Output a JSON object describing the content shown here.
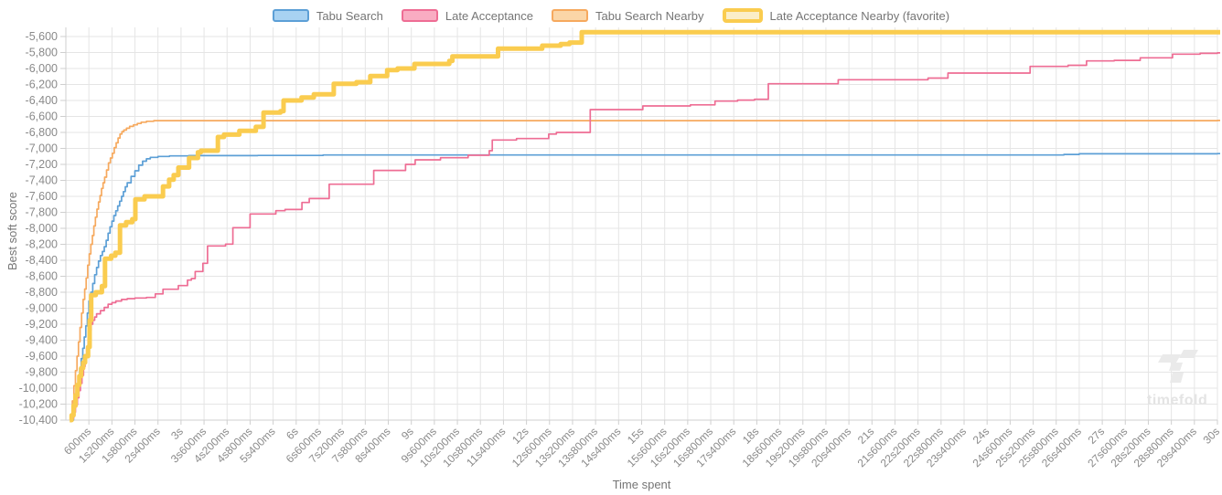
{
  "watermark": {
    "text": "timefold"
  },
  "chart_data": {
    "type": "line",
    "interpolation": "step-after",
    "title": "",
    "grid": true,
    "legend_position": "top",
    "x_axis": {
      "title": "Time spent",
      "range_ms": [
        0,
        30000
      ],
      "tick_values_ms": [
        600,
        1200,
        1800,
        2400,
        3000,
        3600,
        4200,
        4800,
        5400,
        6000,
        6600,
        7200,
        7800,
        8400,
        9000,
        9600,
        10200,
        10800,
        11400,
        12000,
        12600,
        13200,
        13800,
        14400,
        15000,
        15600,
        16200,
        16800,
        17400,
        18000,
        18600,
        19200,
        19800,
        20400,
        21000,
        21600,
        22200,
        22800,
        23400,
        24000,
        24600,
        25200,
        25800,
        26400,
        27000,
        27600,
        28200,
        28800,
        29400,
        30000
      ],
      "tick_labels": [
        "600ms",
        "1s200ms",
        "1s800ms",
        "2s400ms",
        "3s",
        "3s600ms",
        "4s200ms",
        "4s800ms",
        "5s400ms",
        "6s",
        "6s600ms",
        "7s200ms",
        "7s800ms",
        "8s400ms",
        "9s",
        "9s600ms",
        "10s200ms",
        "10s800ms",
        "11s400ms",
        "12s",
        "12s600ms",
        "13s200ms",
        "13s800ms",
        "14s400ms",
        "15s",
        "15s600ms",
        "16s200ms",
        "16s800ms",
        "17s400ms",
        "18s",
        "18s600ms",
        "19s200ms",
        "19s800ms",
        "20s400ms",
        "21s",
        "21s600ms",
        "22s200ms",
        "22s800ms",
        "23s400ms",
        "24s",
        "24s600ms",
        "25s200ms",
        "25s800ms",
        "26s400ms",
        "27s",
        "27s600ms",
        "28s200ms",
        "28s800ms",
        "29s400ms",
        "30s"
      ]
    },
    "y_axis": {
      "title": "Best soft score",
      "range": [
        -10400,
        -5600
      ],
      "tick_values": [
        -5600,
        -5800,
        -6000,
        -6200,
        -6400,
        -6600,
        -6800,
        -7000,
        -7200,
        -7400,
        -7600,
        -7800,
        -8000,
        -8200,
        -8400,
        -8600,
        -8800,
        -9000,
        -9200,
        -9400,
        -9600,
        -9800,
        -10000,
        -10200,
        -10400
      ],
      "tick_labels": [
        "-5,600",
        "-5,800",
        "-6,000",
        "-6,200",
        "-6,400",
        "-6,600",
        "-6,800",
        "-7,000",
        "-7,200",
        "-7,400",
        "-7,600",
        "-7,800",
        "-8,000",
        "-8,200",
        "-8,400",
        "-8,600",
        "-8,800",
        "-9,000",
        "-9,200",
        "-9,400",
        "-9,600",
        "-9,800",
        "-10,000",
        "-10,200",
        "-10,400"
      ]
    },
    "colors": {
      "grid": "#e5e5e5",
      "axis": "#cfcfcf",
      "tick_text": "#8a8a8a"
    },
    "series": [
      {
        "name": "Tabu Search",
        "color": "#5c9fd6",
        "legend_fill": "#a8d2f2",
        "line_width": 1.7,
        "favorite": false,
        "points": [
          [
            170,
            -10400
          ],
          [
            200,
            -10250
          ],
          [
            240,
            -10120
          ],
          [
            280,
            -9990
          ],
          [
            320,
            -9870
          ],
          [
            360,
            -9750
          ],
          [
            400,
            -9630
          ],
          [
            440,
            -9500
          ],
          [
            480,
            -9360
          ],
          [
            520,
            -9220
          ],
          [
            560,
            -9060
          ],
          [
            600,
            -8910
          ],
          [
            650,
            -8800
          ],
          [
            700,
            -8690
          ],
          [
            750,
            -8580
          ],
          [
            800,
            -8490
          ],
          [
            850,
            -8410
          ],
          [
            900,
            -8340
          ],
          [
            950,
            -8290
          ],
          [
            1000,
            -8230
          ],
          [
            1050,
            -8150
          ],
          [
            1100,
            -8060
          ],
          [
            1150,
            -7980
          ],
          [
            1200,
            -7910
          ],
          [
            1250,
            -7840
          ],
          [
            1300,
            -7780
          ],
          [
            1350,
            -7720
          ],
          [
            1400,
            -7660
          ],
          [
            1450,
            -7600
          ],
          [
            1500,
            -7540
          ],
          [
            1550,
            -7480
          ],
          [
            1600,
            -7430
          ],
          [
            1700,
            -7350
          ],
          [
            1800,
            -7280
          ],
          [
            1900,
            -7210
          ],
          [
            2000,
            -7160
          ],
          [
            2100,
            -7130
          ],
          [
            2200,
            -7112
          ],
          [
            2400,
            -7100
          ],
          [
            2700,
            -7094
          ],
          [
            3200,
            -7090
          ],
          [
            5000,
            -7088
          ],
          [
            6700,
            -7082
          ],
          [
            26000,
            -7075
          ],
          [
            26400,
            -7068
          ],
          [
            30000,
            -7065
          ]
        ]
      },
      {
        "name": "Late Acceptance",
        "color": "#ee6d94",
        "legend_fill": "#f9acc2",
        "line_width": 1.7,
        "favorite": false,
        "points": [
          [
            150,
            -10380
          ],
          [
            200,
            -10300
          ],
          [
            250,
            -10210
          ],
          [
            300,
            -10120
          ],
          [
            340,
            -10030
          ],
          [
            380,
            -9940
          ],
          [
            420,
            -9840
          ],
          [
            460,
            -9730
          ],
          [
            500,
            -9620
          ],
          [
            540,
            -9500
          ],
          [
            580,
            -9380
          ],
          [
            620,
            -9280
          ],
          [
            660,
            -9200
          ],
          [
            700,
            -9150
          ],
          [
            750,
            -9110
          ],
          [
            800,
            -9070
          ],
          [
            900,
            -9030
          ],
          [
            1000,
            -8990
          ],
          [
            1100,
            -8950
          ],
          [
            1200,
            -8930
          ],
          [
            1300,
            -8910
          ],
          [
            1450,
            -8890
          ],
          [
            1600,
            -8880
          ],
          [
            1800,
            -8872
          ],
          [
            2100,
            -8865
          ],
          [
            2330,
            -8820
          ],
          [
            2530,
            -8762
          ],
          [
            2930,
            -8717
          ],
          [
            3170,
            -8648
          ],
          [
            3270,
            -8629
          ],
          [
            3370,
            -8541
          ],
          [
            3570,
            -8438
          ],
          [
            3690,
            -8221
          ],
          [
            4160,
            -8198
          ],
          [
            4350,
            -7992
          ],
          [
            4800,
            -7821
          ],
          [
            5470,
            -7779
          ],
          [
            5710,
            -7765
          ],
          [
            6150,
            -7677
          ],
          [
            6340,
            -7627
          ],
          [
            6860,
            -7448
          ],
          [
            8020,
            -7276
          ],
          [
            8850,
            -7200
          ],
          [
            9100,
            -7143
          ],
          [
            9760,
            -7117
          ],
          [
            10480,
            -7086
          ],
          [
            11030,
            -7029
          ],
          [
            11110,
            -6895
          ],
          [
            11740,
            -6877
          ],
          [
            12580,
            -6820
          ],
          [
            12780,
            -6800
          ],
          [
            13660,
            -6514
          ],
          [
            15030,
            -6469
          ],
          [
            16270,
            -6455
          ],
          [
            16910,
            -6408
          ],
          [
            17500,
            -6395
          ],
          [
            17940,
            -6385
          ],
          [
            18300,
            -6191
          ],
          [
            20120,
            -6141
          ],
          [
            22460,
            -6120
          ],
          [
            22980,
            -6057
          ],
          [
            25120,
            -5974
          ],
          [
            26110,
            -5960
          ],
          [
            26590,
            -5905
          ],
          [
            27310,
            -5898
          ],
          [
            27990,
            -5866
          ],
          [
            28830,
            -5821
          ],
          [
            29550,
            -5810
          ],
          [
            30000,
            -5805
          ]
        ]
      },
      {
        "name": "Tabu Search Nearby",
        "color": "#f6a95e",
        "legend_fill": "#fbd6a7",
        "line_width": 1.7,
        "favorite": false,
        "points": [
          [
            130,
            -10350
          ],
          [
            170,
            -10160
          ],
          [
            210,
            -9970
          ],
          [
            250,
            -9780
          ],
          [
            290,
            -9600
          ],
          [
            330,
            -9420
          ],
          [
            370,
            -9240
          ],
          [
            410,
            -9060
          ],
          [
            450,
            -8890
          ],
          [
            490,
            -8760
          ],
          [
            530,
            -8620
          ],
          [
            570,
            -8460
          ],
          [
            610,
            -8320
          ],
          [
            650,
            -8200
          ],
          [
            690,
            -8090
          ],
          [
            730,
            -7970
          ],
          [
            770,
            -7860
          ],
          [
            810,
            -7760
          ],
          [
            850,
            -7670
          ],
          [
            890,
            -7590
          ],
          [
            930,
            -7500
          ],
          [
            970,
            -7430
          ],
          [
            1010,
            -7360
          ],
          [
            1060,
            -7270
          ],
          [
            1110,
            -7180
          ],
          [
            1160,
            -7120
          ],
          [
            1210,
            -7060
          ],
          [
            1260,
            -6990
          ],
          [
            1310,
            -6930
          ],
          [
            1360,
            -6870
          ],
          [
            1410,
            -6820
          ],
          [
            1460,
            -6790
          ],
          [
            1510,
            -6770
          ],
          [
            1580,
            -6748
          ],
          [
            1660,
            -6725
          ],
          [
            1760,
            -6705
          ],
          [
            1860,
            -6688
          ],
          [
            1960,
            -6672
          ],
          [
            2100,
            -6660
          ],
          [
            2290,
            -6652
          ],
          [
            30000,
            -6650
          ]
        ]
      },
      {
        "name": "Late Acceptance Nearby (favorite)",
        "color": "#facc4f",
        "legend_fill": "#fbeec8",
        "line_width": 5,
        "favorite": true,
        "points": [
          [
            100,
            -10400
          ],
          [
            150,
            -10340
          ],
          [
            200,
            -10220
          ],
          [
            250,
            -10090
          ],
          [
            300,
            -9960
          ],
          [
            350,
            -9850
          ],
          [
            400,
            -9750
          ],
          [
            450,
            -9680
          ],
          [
            500,
            -9600
          ],
          [
            580,
            -9486
          ],
          [
            620,
            -9150
          ],
          [
            660,
            -8835
          ],
          [
            780,
            -8800
          ],
          [
            940,
            -8724
          ],
          [
            1020,
            -8381
          ],
          [
            1180,
            -8343
          ],
          [
            1290,
            -8305
          ],
          [
            1410,
            -7962
          ],
          [
            1570,
            -7924
          ],
          [
            1730,
            -7886
          ],
          [
            1810,
            -7638
          ],
          [
            2050,
            -7600
          ],
          [
            2530,
            -7475
          ],
          [
            2690,
            -7391
          ],
          [
            2810,
            -7334
          ],
          [
            2930,
            -7240
          ],
          [
            3210,
            -7120
          ],
          [
            3440,
            -7048
          ],
          [
            3520,
            -7029
          ],
          [
            3960,
            -6857
          ],
          [
            4120,
            -6827
          ],
          [
            4520,
            -6781
          ],
          [
            4950,
            -6730
          ],
          [
            5150,
            -6552
          ],
          [
            5590,
            -6534
          ],
          [
            5670,
            -6400
          ],
          [
            6140,
            -6362
          ],
          [
            6460,
            -6324
          ],
          [
            6980,
            -6191
          ],
          [
            7570,
            -6171
          ],
          [
            7930,
            -6095
          ],
          [
            8370,
            -6019
          ],
          [
            8640,
            -6000
          ],
          [
            9080,
            -5943
          ],
          [
            9990,
            -5905
          ],
          [
            10070,
            -5848
          ],
          [
            11260,
            -5752
          ],
          [
            12410,
            -5714
          ],
          [
            12890,
            -5695
          ],
          [
            13120,
            -5676
          ],
          [
            13440,
            -5545
          ],
          [
            30000,
            -5545
          ]
        ]
      }
    ]
  }
}
